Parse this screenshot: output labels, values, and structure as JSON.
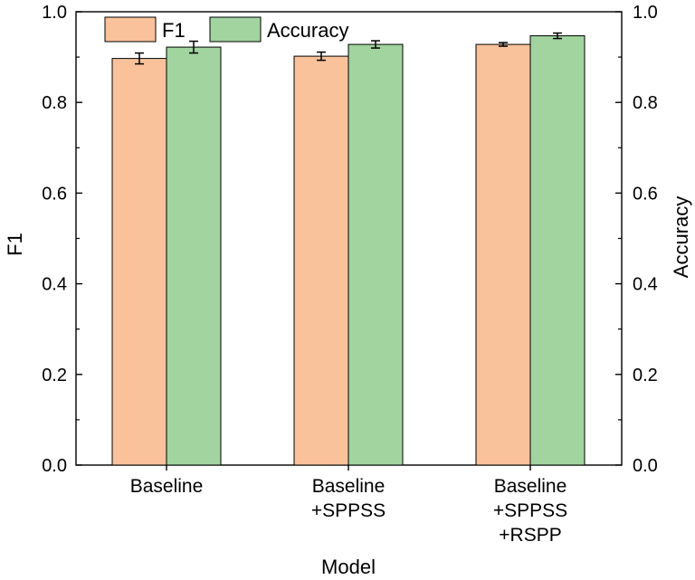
{
  "chart_data": {
    "type": "bar",
    "title": "",
    "xlabel": "Model",
    "ylabel": "F1",
    "y2label": "Accuracy",
    "ylim": [
      0,
      1.0
    ],
    "y2lim": [
      0,
      1.0
    ],
    "yticks": [
      "0.0",
      "0.2",
      "0.4",
      "0.6",
      "0.8",
      "1.0"
    ],
    "y2ticks": [
      "0.0",
      "0.2",
      "0.4",
      "0.6",
      "0.8",
      "1.0"
    ],
    "grid": false,
    "legend_position": "top-left",
    "categories": [
      [
        "Baseline"
      ],
      [
        "Baseline",
        "+SPPSS"
      ],
      [
        "Baseline",
        "+SPPSS",
        "+RSPP"
      ]
    ],
    "series": [
      {
        "name": "F1",
        "color": "#F9C29B",
        "values": [
          0.897,
          0.902,
          0.928
        ],
        "errors": [
          0.012,
          0.009,
          0.004
        ]
      },
      {
        "name": "Accuracy",
        "color": "#A1D49F",
        "values": [
          0.922,
          0.928,
          0.947
        ],
        "errors": [
          0.013,
          0.008,
          0.006
        ]
      }
    ]
  }
}
